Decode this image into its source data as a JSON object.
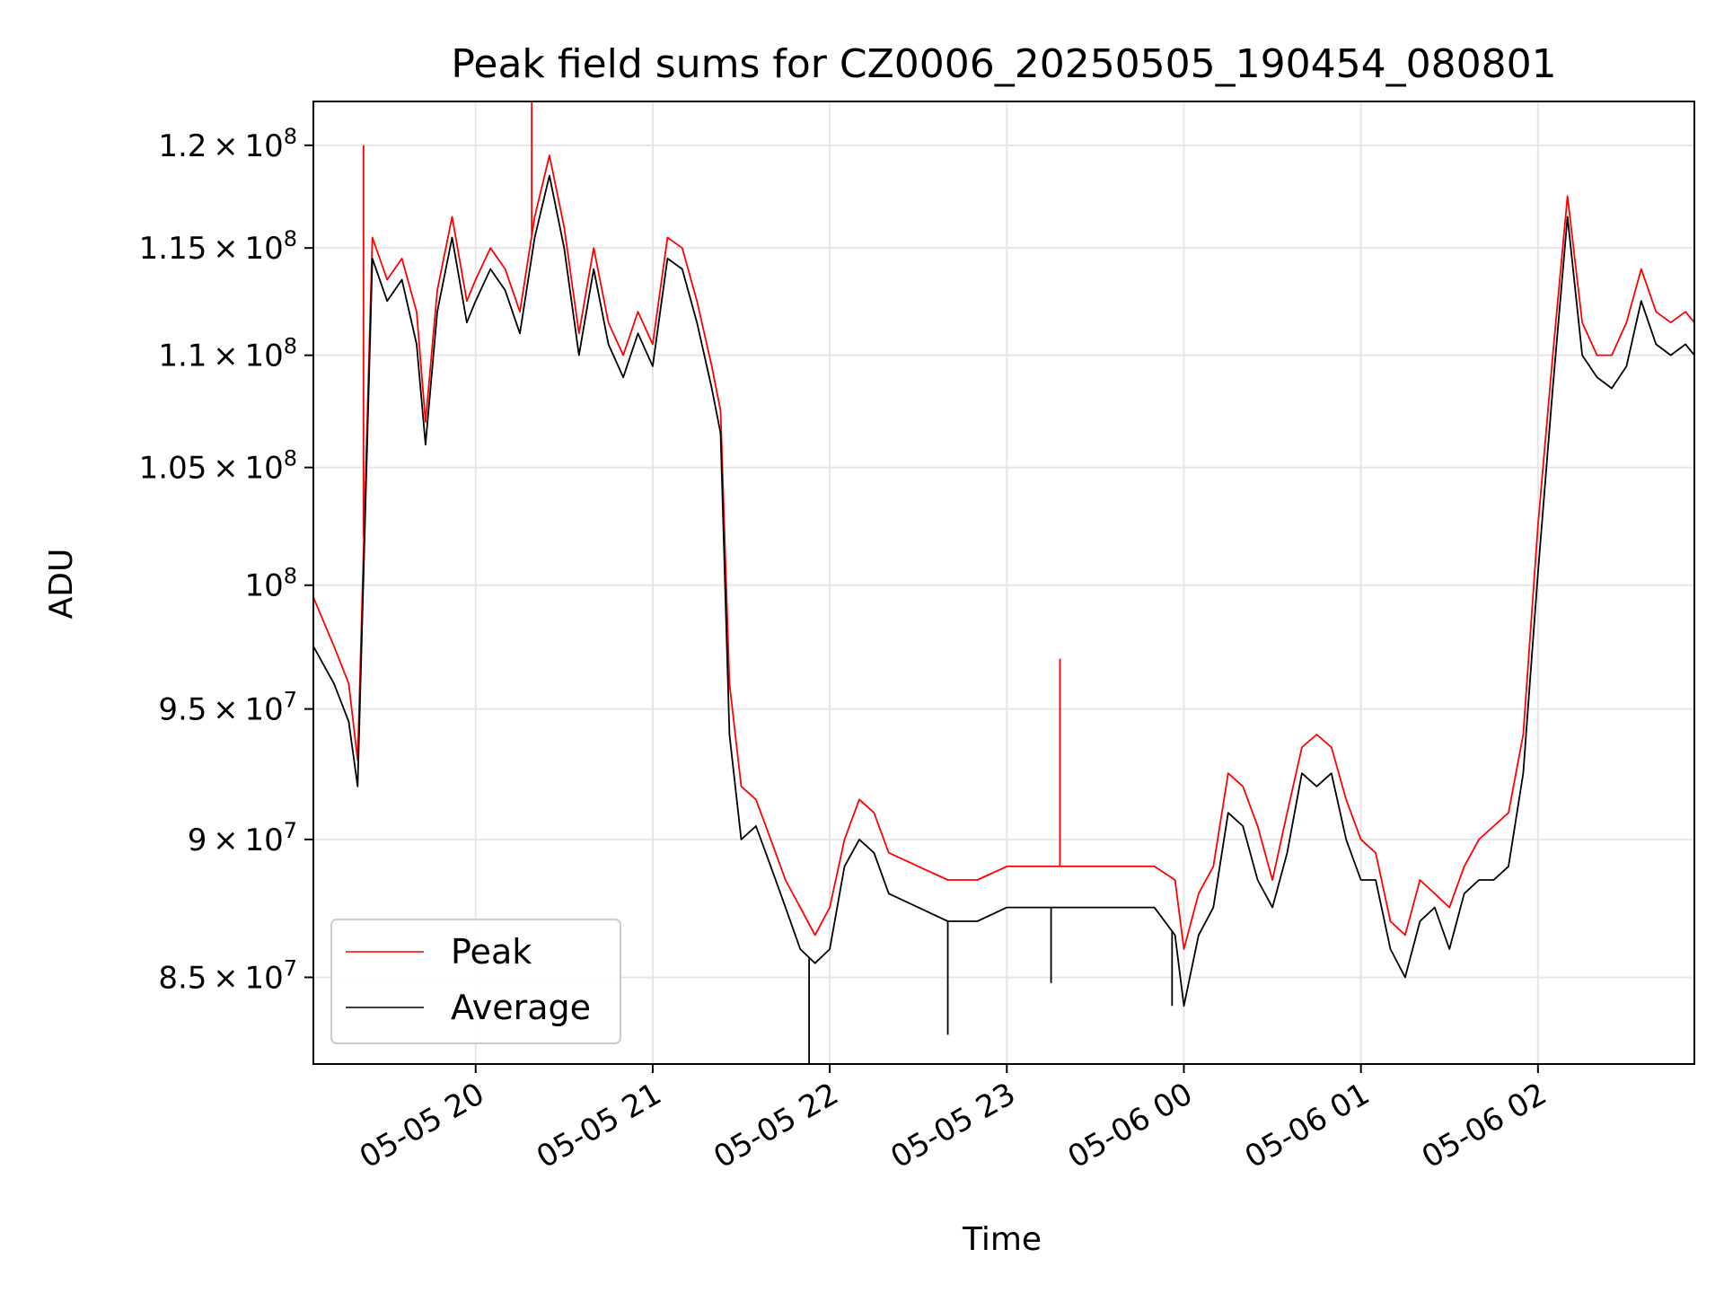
{
  "chart_data": {
    "type": "line",
    "title": "Peak field sums for CZ0006_20250505_190454_080801",
    "xlabel": "Time",
    "ylabel": "ADU",
    "y_scale": "log",
    "grid": true,
    "legend_position": "lower-left",
    "xlim": [
      "2025-05-05 19:05",
      "2025-05-06 02:53"
    ],
    "ylim": [
      82000000,
      122200000
    ],
    "x_ticks": [
      "2025-05-05 20:00",
      "2025-05-05 21:00",
      "2025-05-05 22:00",
      "2025-05-05 23:00",
      "2025-05-06 00:00",
      "2025-05-06 01:00",
      "2025-05-06 02:00"
    ],
    "x_tick_labels": [
      "05-05 20",
      "05-05 21",
      "05-05 22",
      "05-05 23",
      "05-06 00",
      "05-06 01",
      "05-06 02"
    ],
    "y_ticks": [
      85000000,
      90000000,
      95000000,
      100000000,
      105000000,
      110000000,
      115000000,
      120000000
    ],
    "y_tick_labels": [
      {
        "mant": "8.5",
        "exp": "7"
      },
      {
        "mant": "9",
        "exp": "7"
      },
      {
        "mant": "9.5",
        "exp": "7"
      },
      {
        "mant": "",
        "exp": "8"
      },
      {
        "mant": "1.05",
        "exp": "8"
      },
      {
        "mant": "1.1",
        "exp": "8"
      },
      {
        "mant": "1.15",
        "exp": "8"
      },
      {
        "mant": "1.2",
        "exp": "8"
      }
    ],
    "x": [
      "2025-05-05 19:05",
      "2025-05-05 19:12",
      "2025-05-05 19:17",
      "2025-05-05 19:20",
      "2025-05-05 19:25",
      "2025-05-05 19:30",
      "2025-05-05 19:35",
      "2025-05-05 19:40",
      "2025-05-05 19:43",
      "2025-05-05 19:47",
      "2025-05-05 19:52",
      "2025-05-05 19:57",
      "2025-05-05 20:00",
      "2025-05-05 20:05",
      "2025-05-05 20:10",
      "2025-05-05 20:15",
      "2025-05-05 20:20",
      "2025-05-05 20:25",
      "2025-05-05 20:30",
      "2025-05-05 20:35",
      "2025-05-05 20:40",
      "2025-05-05 20:45",
      "2025-05-05 20:50",
      "2025-05-05 20:55",
      "2025-05-05 21:00",
      "2025-05-05 21:05",
      "2025-05-05 21:10",
      "2025-05-05 21:15",
      "2025-05-05 21:20",
      "2025-05-05 21:23",
      "2025-05-05 21:26",
      "2025-05-05 21:30",
      "2025-05-05 21:35",
      "2025-05-05 21:40",
      "2025-05-05 21:45",
      "2025-05-05 21:50",
      "2025-05-05 21:55",
      "2025-05-05 22:00",
      "2025-05-05 22:05",
      "2025-05-05 22:10",
      "2025-05-05 22:15",
      "2025-05-05 22:20",
      "2025-05-05 22:30",
      "2025-05-05 22:40",
      "2025-05-05 22:50",
      "2025-05-05 23:00",
      "2025-05-05 23:10",
      "2025-05-05 23:20",
      "2025-05-05 23:30",
      "2025-05-05 23:40",
      "2025-05-05 23:50",
      "2025-05-05 23:57",
      "2025-05-06 00:00",
      "2025-05-06 00:05",
      "2025-05-06 00:10",
      "2025-05-06 00:15",
      "2025-05-06 00:20",
      "2025-05-06 00:25",
      "2025-05-06 00:30",
      "2025-05-06 00:35",
      "2025-05-06 00:40",
      "2025-05-06 00:45",
      "2025-05-06 00:50",
      "2025-05-06 00:55",
      "2025-05-06 01:00",
      "2025-05-06 01:05",
      "2025-05-06 01:10",
      "2025-05-06 01:15",
      "2025-05-06 01:20",
      "2025-05-06 01:25",
      "2025-05-06 01:30",
      "2025-05-06 01:35",
      "2025-05-06 01:40",
      "2025-05-06 01:45",
      "2025-05-06 01:50",
      "2025-05-06 01:55",
      "2025-05-06 02:00",
      "2025-05-06 02:05",
      "2025-05-06 02:10",
      "2025-05-06 02:15",
      "2025-05-06 02:20",
      "2025-05-06 02:25",
      "2025-05-06 02:30",
      "2025-05-06 02:35",
      "2025-05-06 02:40",
      "2025-05-06 02:45",
      "2025-05-06 02:50",
      "2025-05-06 02:53"
    ],
    "series": [
      {
        "name": "Peak",
        "color": "#ff0000",
        "values": [
          99500000,
          97500000,
          96000000,
          93000000,
          115500000,
          113500000,
          114500000,
          112000000,
          107000000,
          113000000,
          116500000,
          112500000,
          113500000,
          115000000,
          114000000,
          112000000,
          116500000,
          119500000,
          116000000,
          111000000,
          115000000,
          111500000,
          110000000,
          112000000,
          110500000,
          115500000,
          115000000,
          112500000,
          109500000,
          107500000,
          96000000,
          92000000,
          91500000,
          90000000,
          88500000,
          87500000,
          86500000,
          87500000,
          90000000,
          91500000,
          91000000,
          89500000,
          89000000,
          88500000,
          88500000,
          89000000,
          89000000,
          89000000,
          89000000,
          89000000,
          89000000,
          88500000,
          86000000,
          88000000,
          89000000,
          92500000,
          92000000,
          90500000,
          88500000,
          91000000,
          93500000,
          94000000,
          93500000,
          91500000,
          90000000,
          89500000,
          87000000,
          86500000,
          88500000,
          88000000,
          87500000,
          89000000,
          90000000,
          90500000,
          91000000,
          94000000,
          102500000,
          110000000,
          117500000,
          111500000,
          110000000,
          110000000,
          111500000,
          114000000,
          112000000,
          111500000,
          112000000,
          111500000
        ]
      },
      {
        "name": "Average",
        "color": "#000000",
        "values": [
          97500000,
          96000000,
          94500000,
          92000000,
          114500000,
          112500000,
          113500000,
          110500000,
          106000000,
          112000000,
          115500000,
          111500000,
          112500000,
          114000000,
          113000000,
          111000000,
          115500000,
          118500000,
          115000000,
          110000000,
          114000000,
          110500000,
          109000000,
          111000000,
          109500000,
          114500000,
          114000000,
          111500000,
          108500000,
          106500000,
          94000000,
          90000000,
          90500000,
          89000000,
          87500000,
          86000000,
          85500000,
          86000000,
          89000000,
          90000000,
          89500000,
          88000000,
          87500000,
          87000000,
          87000000,
          87500000,
          87500000,
          87500000,
          87500000,
          87500000,
          87500000,
          86500000,
          84000000,
          86500000,
          87500000,
          91000000,
          90500000,
          88500000,
          87500000,
          89500000,
          92500000,
          92000000,
          92500000,
          90000000,
          88500000,
          88500000,
          86000000,
          85000000,
          87000000,
          87500000,
          86000000,
          88000000,
          88500000,
          88500000,
          89000000,
          92500000,
          100500000,
          108500000,
          116500000,
          110000000,
          109000000,
          108500000,
          109500000,
          112500000,
          110500000,
          110000000,
          110500000,
          110000000
        ]
      }
    ],
    "spikes": [
      {
        "series": "Peak",
        "x": "2025-05-05 20:19",
        "y": 122200000
      },
      {
        "series": "Peak",
        "x": "2025-05-05 19:22",
        "y": 120000000
      },
      {
        "series": "Peak",
        "x": "2025-05-05 23:18",
        "y": 97000000
      },
      {
        "series": "Average",
        "x": "2025-05-05 21:53",
        "y": 82000000
      },
      {
        "series": "Average",
        "x": "2025-05-05 22:40",
        "y": 83000000
      },
      {
        "series": "Average",
        "x": "2025-05-05 23:15",
        "y": 84800000
      },
      {
        "series": "Average",
        "x": "2025-05-05 23:56",
        "y": 84000000
      }
    ]
  }
}
